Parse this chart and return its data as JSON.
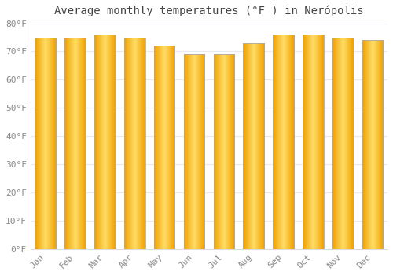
{
  "categories": [
    "Jan",
    "Feb",
    "Mar",
    "Apr",
    "May",
    "Jun",
    "Jul",
    "Aug",
    "Sep",
    "Oct",
    "Nov",
    "Dec"
  ],
  "values": [
    75,
    75,
    76,
    75,
    72,
    69,
    69,
    73,
    76,
    76,
    75,
    74
  ],
  "title": "Average monthly temperatures (°F ) in Nerópolis",
  "ylim": [
    0,
    80
  ],
  "yticks": [
    0,
    10,
    20,
    30,
    40,
    50,
    60,
    70,
    80
  ],
  "ytick_labels": [
    "0°F",
    "10°F",
    "20°F",
    "30°F",
    "40°F",
    "50°F",
    "60°F",
    "70°F",
    "80°F"
  ],
  "bar_color_center": "#FFD966",
  "bar_color_edge": "#F0A000",
  "background_color": "#ffffff",
  "grid_color": "#e8e8f0",
  "title_fontsize": 10,
  "tick_fontsize": 8,
  "bar_edge_color": "#aaaaaa",
  "tick_color": "#888888",
  "title_color": "#444444"
}
